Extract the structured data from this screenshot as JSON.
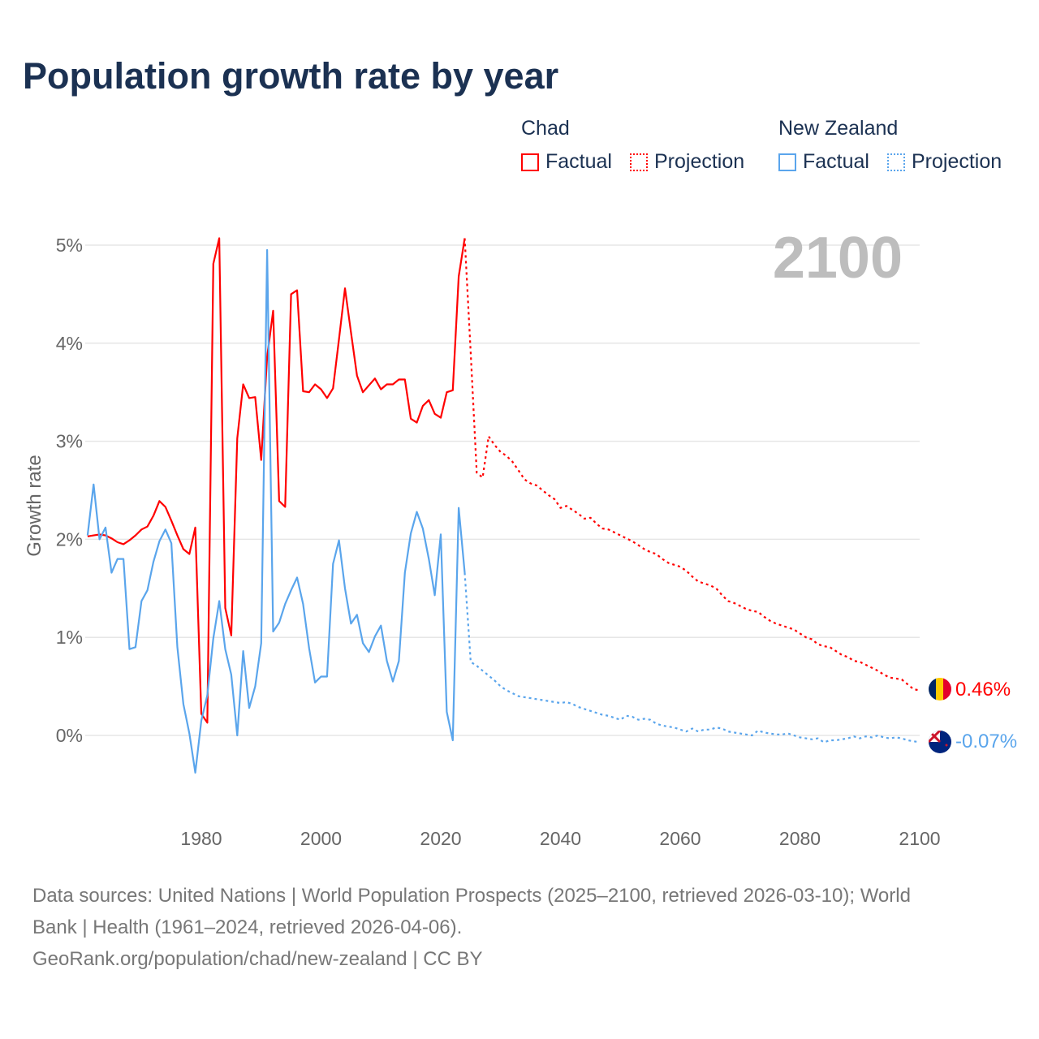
{
  "title": "Population growth rate by year",
  "legend": {
    "groups": [
      {
        "name": "Chad",
        "factual": "Factual",
        "projection": "Projection",
        "color": "#ff0000"
      },
      {
        "name": "New Zealand",
        "factual": "Factual",
        "projection": "Projection",
        "color": "#5aa5ec"
      }
    ]
  },
  "year_display": "2100",
  "end_labels": {
    "chad": "0.46%",
    "nz": "-0.07%"
  },
  "footer": {
    "line1": "Data sources: United Nations | World Population Prospects (2025–2100, retrieved 2026-03-10); World",
    "line2": "Bank | Health (1961–2024, retrieved 2026-04-06).",
    "line3": "GeoRank.org/population/chad/new-zealand | CC BY"
  },
  "chart_data": {
    "type": "line",
    "title": "Population growth rate by year",
    "xlabel": "",
    "ylabel": "Growth rate",
    "xlim": [
      1961,
      2100
    ],
    "ylim": [
      -0.8,
      5.2
    ],
    "x_ticks": [
      1980,
      2000,
      2020,
      2040,
      2060,
      2080,
      2100
    ],
    "y_ticks": [
      0,
      1,
      2,
      3,
      4,
      5
    ],
    "y_tick_labels": [
      "0%",
      "1%",
      "2%",
      "3%",
      "4%",
      "5%"
    ],
    "grid": true,
    "legend_position": "top-right",
    "series": [
      {
        "name": "Chad Factual",
        "color": "#ff0000",
        "dashed": false,
        "start_year": 1961,
        "values": [
          2.03,
          2.04,
          2.05,
          2.04,
          2.01,
          1.97,
          1.95,
          1.99,
          2.04,
          2.1,
          2.13,
          2.24,
          2.39,
          2.33,
          2.19,
          2.04,
          1.9,
          1.85,
          2.12,
          0.22,
          0.13,
          4.81,
          5.07,
          1.3,
          1.02,
          3.03,
          3.58,
          3.44,
          3.45,
          2.81,
          3.86,
          4.33,
          2.39,
          2.33,
          4.5,
          4.54,
          3.51,
          3.5,
          3.58,
          3.53,
          3.44,
          3.54,
          4.04,
          4.56,
          4.11,
          3.67,
          3.5,
          3.57,
          3.64,
          3.53,
          3.58,
          3.58,
          3.63,
          3.63,
          3.23,
          3.19,
          3.36,
          3.42,
          3.28,
          3.24,
          3.5,
          3.52,
          4.68,
          5.07
        ]
      },
      {
        "name": "Chad Projection",
        "color": "#ff0000",
        "dashed": true,
        "start_year": 2024,
        "values": [
          5.07,
          3.9,
          2.68,
          2.63,
          3.05,
          2.96,
          2.89,
          2.85,
          2.79,
          2.7,
          2.61,
          2.57,
          2.55,
          2.5,
          2.45,
          2.41,
          2.32,
          2.34,
          2.3,
          2.26,
          2.21,
          2.22,
          2.16,
          2.11,
          2.1,
          2.07,
          2.04,
          2.01,
          1.98,
          1.94,
          1.9,
          1.87,
          1.85,
          1.8,
          1.76,
          1.74,
          1.72,
          1.68,
          1.62,
          1.57,
          1.55,
          1.53,
          1.5,
          1.43,
          1.37,
          1.35,
          1.32,
          1.29,
          1.27,
          1.26,
          1.21,
          1.17,
          1.14,
          1.12,
          1.1,
          1.08,
          1.04,
          1.0,
          0.98,
          0.93,
          0.91,
          0.9,
          0.86,
          0.82,
          0.8,
          0.76,
          0.75,
          0.72,
          0.69,
          0.66,
          0.62,
          0.59,
          0.58,
          0.57,
          0.52,
          0.47,
          0.46
        ]
      },
      {
        "name": "New Zealand Factual",
        "color": "#5aa5ec",
        "dashed": false,
        "start_year": 1961,
        "values": [
          2.04,
          2.56,
          2.0,
          2.12,
          1.66,
          1.8,
          1.8,
          0.88,
          0.9,
          1.37,
          1.48,
          1.77,
          1.98,
          2.1,
          1.96,
          0.9,
          0.32,
          0.02,
          -0.38,
          0.15,
          0.41,
          0.99,
          1.37,
          0.88,
          0.62,
          0.0,
          0.86,
          0.28,
          0.5,
          0.94,
          4.95,
          1.06,
          1.15,
          1.34,
          1.48,
          1.61,
          1.34,
          0.89,
          0.54,
          0.6,
          0.6,
          1.75,
          1.99,
          1.5,
          1.14,
          1.23,
          0.94,
          0.85,
          1.01,
          1.12,
          0.76,
          0.55,
          0.76,
          1.66,
          2.06,
          2.28,
          2.11,
          1.8,
          1.43,
          2.05,
          0.24,
          -0.05,
          2.32,
          1.66
        ]
      },
      {
        "name": "New Zealand Projection",
        "color": "#5aa5ec",
        "dashed": true,
        "start_year": 2024,
        "values": [
          1.66,
          0.75,
          0.71,
          0.66,
          0.61,
          0.56,
          0.5,
          0.46,
          0.43,
          0.4,
          0.39,
          0.38,
          0.37,
          0.36,
          0.35,
          0.34,
          0.33,
          0.34,
          0.32,
          0.29,
          0.27,
          0.25,
          0.23,
          0.21,
          0.2,
          0.18,
          0.16,
          0.2,
          0.19,
          0.16,
          0.17,
          0.16,
          0.12,
          0.1,
          0.09,
          0.08,
          0.06,
          0.04,
          0.07,
          0.04,
          0.06,
          0.06,
          0.08,
          0.07,
          0.04,
          0.03,
          0.02,
          0.01,
          0.0,
          0.05,
          0.03,
          0.02,
          0.01,
          0.01,
          0.02,
          0.0,
          -0.02,
          -0.03,
          -0.04,
          -0.03,
          -0.07,
          -0.05,
          -0.05,
          -0.04,
          -0.03,
          -0.01,
          -0.03,
          -0.01,
          -0.02,
          0.0,
          -0.02,
          -0.03,
          -0.02,
          -0.03,
          -0.05,
          -0.06,
          -0.07
        ]
      }
    ]
  }
}
